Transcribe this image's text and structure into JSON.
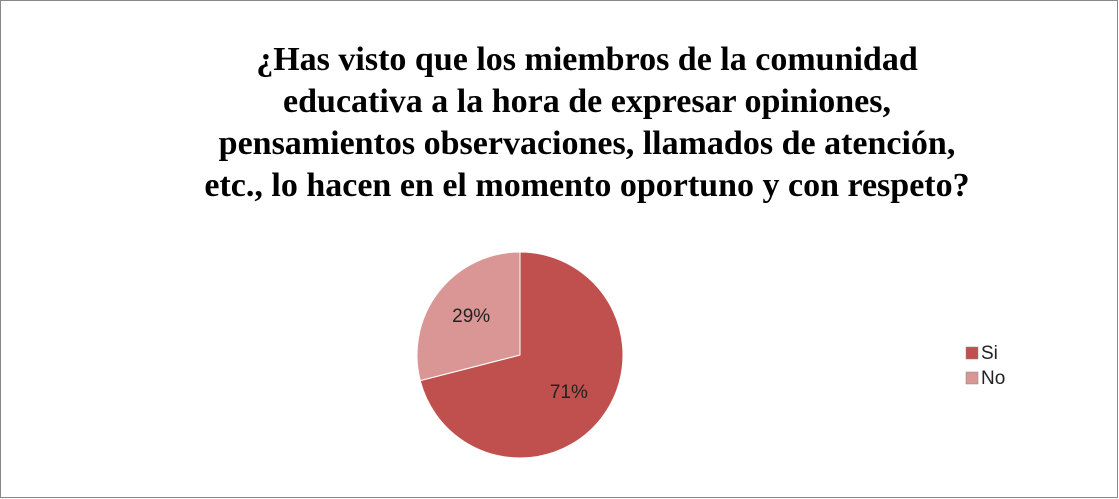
{
  "chart_data": {
    "type": "pie",
    "title": [
      "¿Has visto que los miembros de la comunidad",
      "educativa a la hora de expresar opiniones,",
      "pensamientos observaciones, llamados de atención,",
      "etc., lo hacen en el momento oportuno y con respeto?"
    ],
    "categories": [
      "Si",
      "No"
    ],
    "values": [
      71,
      29
    ],
    "value_labels": [
      "71%",
      "29%"
    ],
    "colors": [
      "#c0504d",
      "#d99694"
    ],
    "legend": "right"
  }
}
